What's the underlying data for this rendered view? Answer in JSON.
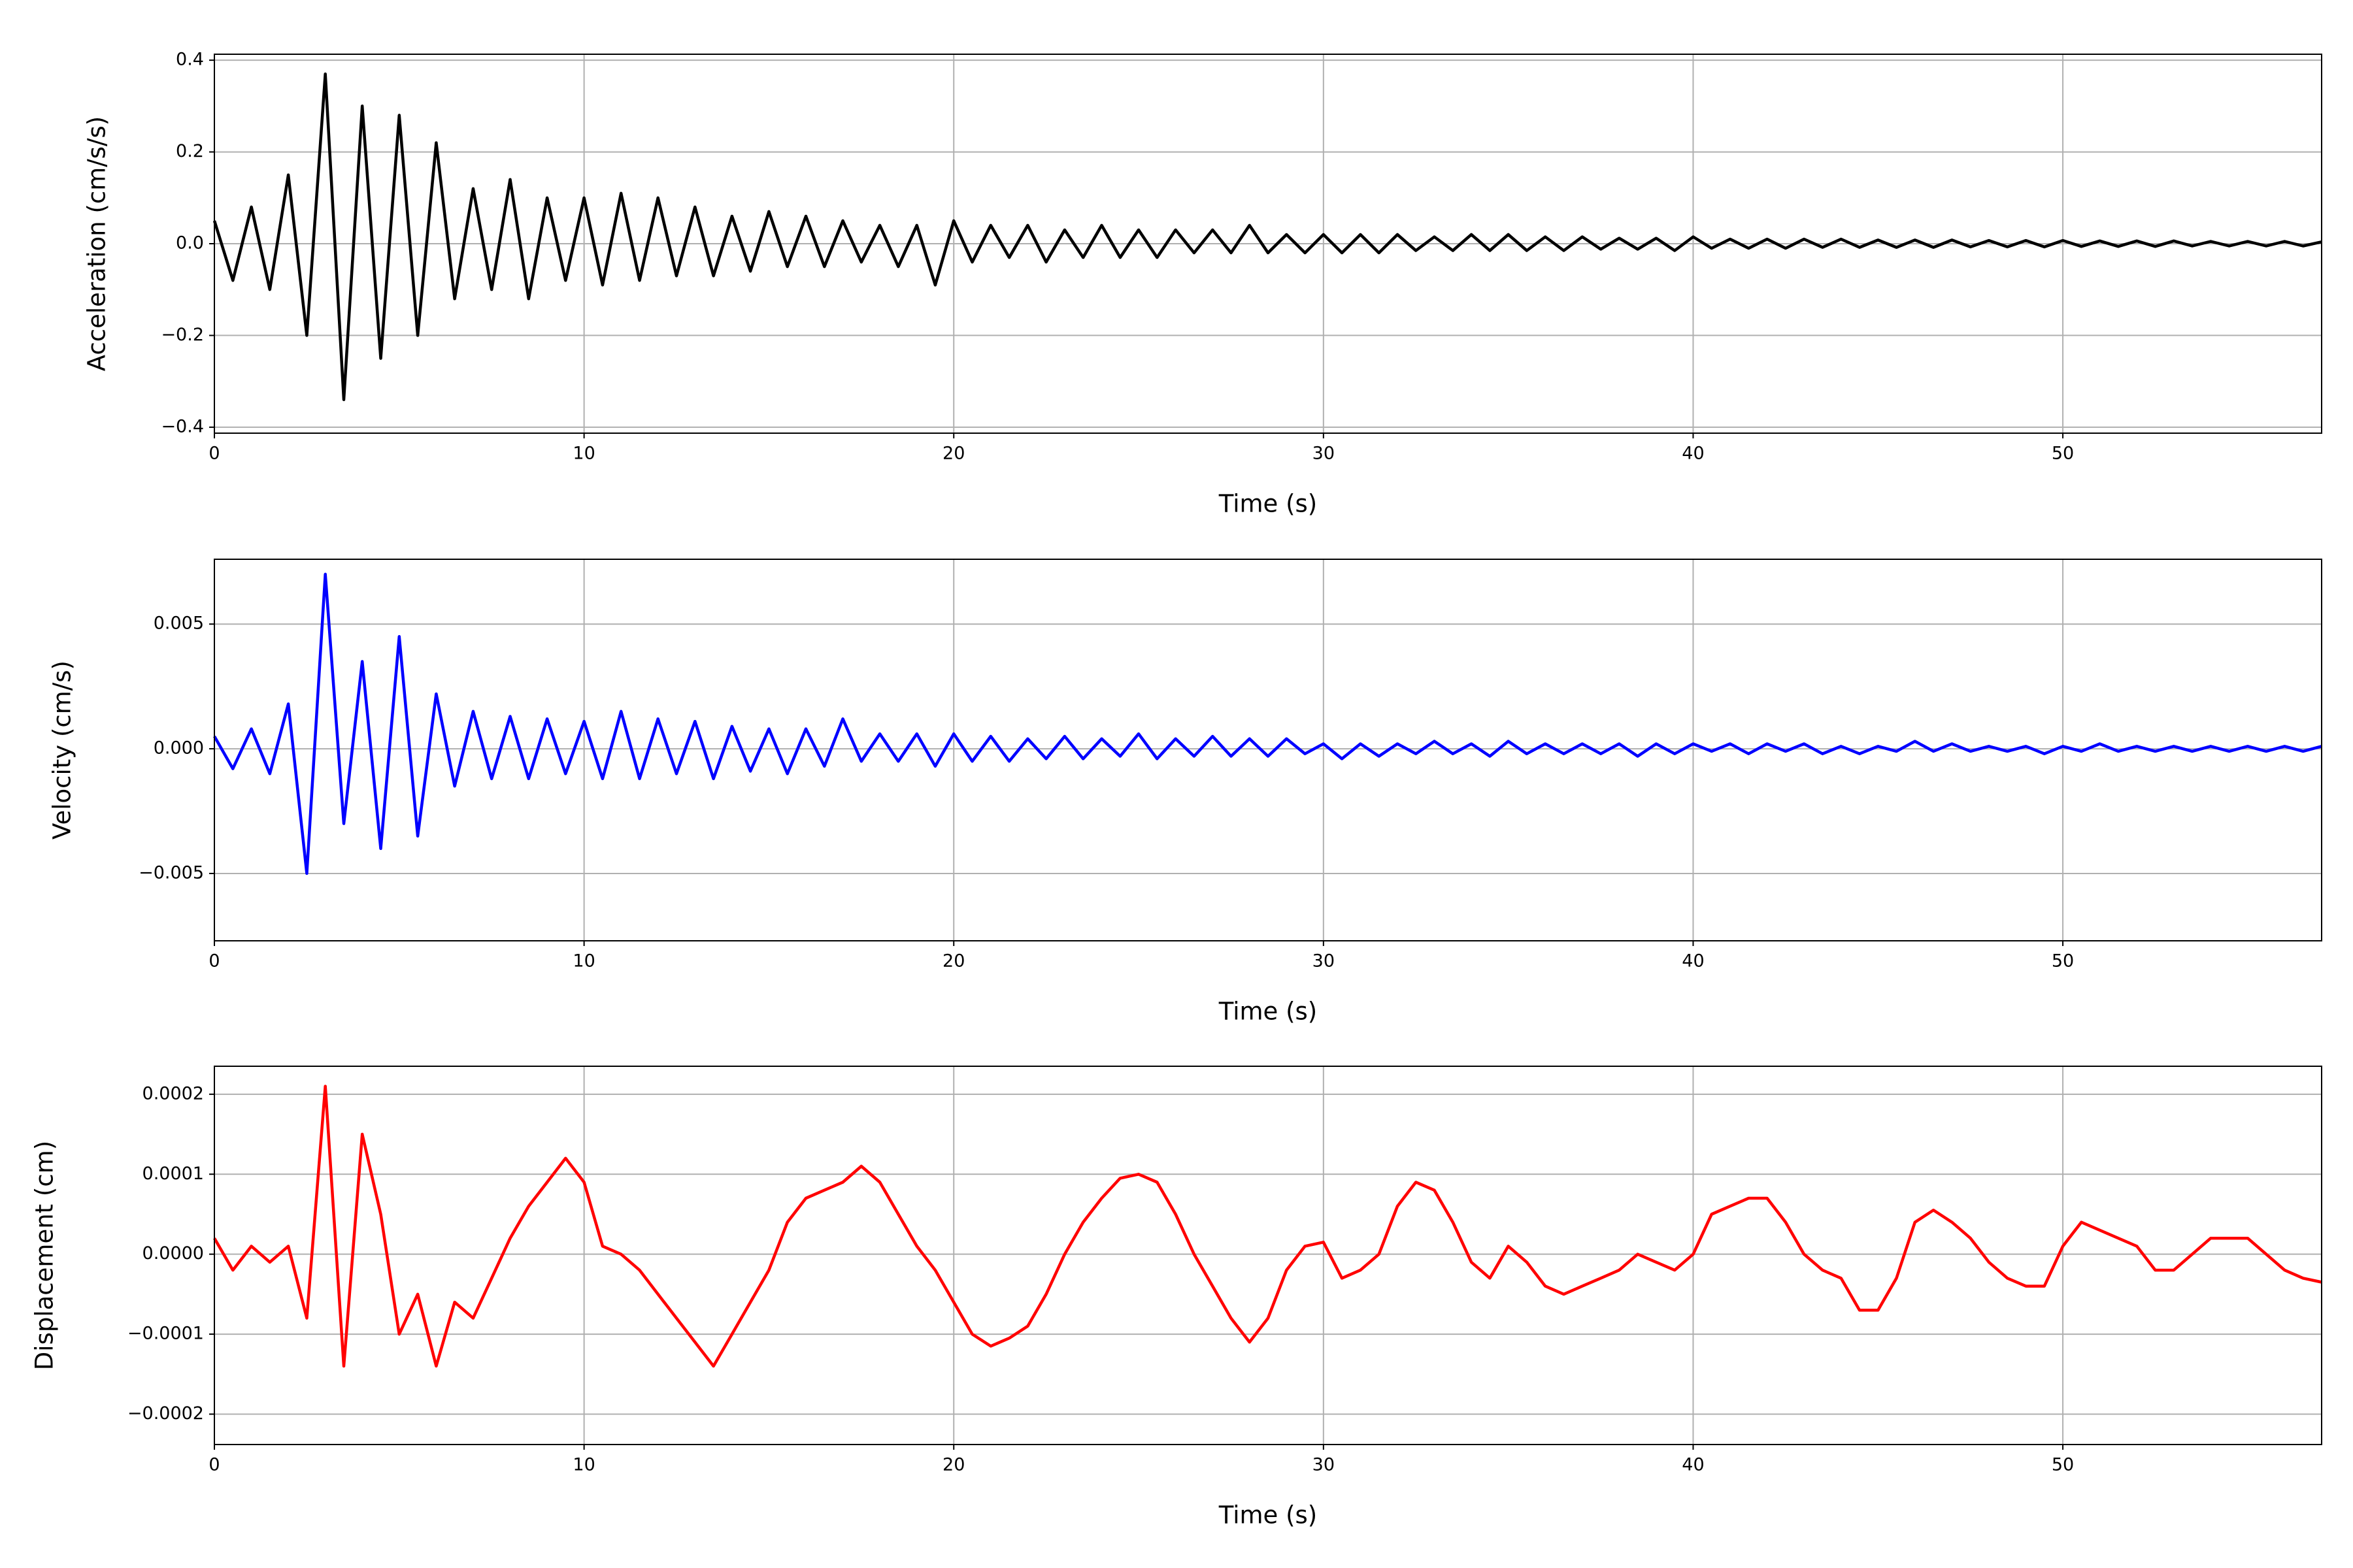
{
  "chart_data": [
    {
      "type": "line",
      "ylabel": "Acceleration (cm/s/s)",
      "xlabel": "Time (s)",
      "color": "#000000",
      "grid": true,
      "xlim": [
        0,
        57
      ],
      "xticks": [
        0,
        10,
        20,
        30,
        40,
        50
      ],
      "ylim": [
        -0.413,
        0.413
      ],
      "yticks": [
        {
          "value": -0.4,
          "label": "−0.4"
        },
        {
          "value": -0.2,
          "label": "−0.2"
        },
        {
          "value": 0,
          "label": "0.0"
        },
        {
          "value": 0.2,
          "label": "0.2"
        },
        {
          "value": 0.4,
          "label": "0.4"
        }
      ],
      "x": [
        0,
        0.5,
        1,
        1.5,
        2,
        2.5,
        3,
        3.5,
        4,
        4.5,
        5,
        5.5,
        6,
        6.5,
        7,
        7.5,
        8,
        8.5,
        9,
        9.5,
        10,
        10.5,
        11,
        11.5,
        12,
        12.5,
        13,
        13.5,
        14,
        14.5,
        15,
        15.5,
        16,
        16.5,
        17,
        17.5,
        18,
        18.5,
        19,
        19.5,
        20,
        20.5,
        21,
        21.5,
        22,
        22.5,
        23,
        23.5,
        24,
        24.5,
        25,
        25.5,
        26,
        26.5,
        27,
        27.5,
        28,
        28.5,
        29,
        29.5,
        30,
        30.5,
        31,
        31.5,
        32,
        32.5,
        33,
        33.5,
        34,
        34.5,
        35,
        35.5,
        36,
        36.5,
        37,
        37.5,
        38,
        38.5,
        39,
        39.5,
        40,
        40.5,
        41,
        41.5,
        42,
        42.5,
        43,
        43.5,
        44,
        44.5,
        45,
        45.5,
        46,
        46.5,
        47,
        47.5,
        48,
        48.5,
        49,
        49.5,
        50,
        50.5,
        51,
        51.5,
        52,
        52.5,
        53,
        53.5,
        54,
        54.5,
        55,
        55.5,
        56,
        56.5,
        57
      ],
      "values": [
        0.05,
        -0.08,
        0.08,
        -0.1,
        0.15,
        -0.2,
        0.37,
        -0.34,
        0.3,
        -0.25,
        0.28,
        -0.2,
        0.22,
        -0.12,
        0.12,
        -0.1,
        0.14,
        -0.12,
        0.1,
        -0.08,
        0.1,
        -0.09,
        0.11,
        -0.08,
        0.1,
        -0.07,
        0.08,
        -0.07,
        0.06,
        -0.06,
        0.07,
        -0.05,
        0.06,
        -0.05,
        0.05,
        -0.04,
        0.04,
        -0.05,
        0.04,
        -0.09,
        0.05,
        -0.04,
        0.04,
        -0.03,
        0.04,
        -0.04,
        0.03,
        -0.03,
        0.04,
        -0.03,
        0.03,
        -0.03,
        0.03,
        -0.02,
        0.03,
        -0.02,
        0.04,
        -0.02,
        0.02,
        -0.02,
        0.02,
        -0.02,
        0.02,
        -0.02,
        0.02,
        -0.015,
        0.015,
        -0.015,
        0.02,
        -0.015,
        0.02,
        -0.015,
        0.015,
        -0.015,
        0.015,
        -0.012,
        0.012,
        -0.012,
        0.012,
        -0.015,
        0.015,
        -0.01,
        0.01,
        -0.01,
        0.01,
        -0.01,
        0.01,
        -0.008,
        0.01,
        -0.008,
        0.008,
        -0.008,
        0.008,
        -0.008,
        0.008,
        -0.007,
        0.007,
        -0.007,
        0.007,
        -0.007,
        0.007,
        -0.006,
        0.006,
        -0.006,
        0.006,
        -0.006,
        0.006,
        -0.005,
        0.005,
        -0.005,
        0.005,
        -0.005,
        0.005,
        -0.005,
        0.004
      ]
    },
    {
      "type": "line",
      "ylabel": "Velocity (cm/s)",
      "xlabel": "Time (s)",
      "color": "#0000ff",
      "grid": true,
      "xlim": [
        0,
        57
      ],
      "xticks": [
        0,
        10,
        20,
        30,
        40,
        50
      ],
      "ylim": [
        -0.0077,
        0.0076
      ],
      "yticks": [
        {
          "value": -0.005,
          "label": "−0.005"
        },
        {
          "value": 0,
          "label": "0.000"
        },
        {
          "value": 0.005,
          "label": "0.005"
        }
      ],
      "x": [
        0,
        0.5,
        1,
        1.5,
        2,
        2.5,
        3,
        3.5,
        4,
        4.5,
        5,
        5.5,
        6,
        6.5,
        7,
        7.5,
        8,
        8.5,
        9,
        9.5,
        10,
        10.5,
        11,
        11.5,
        12,
        12.5,
        13,
        13.5,
        14,
        14.5,
        15,
        15.5,
        16,
        16.5,
        17,
        17.5,
        18,
        18.5,
        19,
        19.5,
        20,
        20.5,
        21,
        21.5,
        22,
        22.5,
        23,
        23.5,
        24,
        24.5,
        25,
        25.5,
        26,
        26.5,
        27,
        27.5,
        28,
        28.5,
        29,
        29.5,
        30,
        30.5,
        31,
        31.5,
        32,
        32.5,
        33,
        33.5,
        34,
        34.5,
        35,
        35.5,
        36,
        36.5,
        37,
        37.5,
        38,
        38.5,
        39,
        39.5,
        40,
        40.5,
        41,
        41.5,
        42,
        42.5,
        43,
        43.5,
        44,
        44.5,
        45,
        45.5,
        46,
        46.5,
        47,
        47.5,
        48,
        48.5,
        49,
        49.5,
        50,
        50.5,
        51,
        51.5,
        52,
        52.5,
        53,
        53.5,
        54,
        54.5,
        55,
        55.5,
        56,
        56.5,
        57
      ],
      "values": [
        0.0005,
        -0.0008,
        0.0008,
        -0.001,
        0.0018,
        -0.005,
        0.007,
        -0.003,
        0.0035,
        -0.004,
        0.0045,
        -0.0035,
        0.0022,
        -0.0015,
        0.0015,
        -0.0012,
        0.0013,
        -0.0012,
        0.0012,
        -0.001,
        0.0011,
        -0.0012,
        0.0015,
        -0.0012,
        0.0012,
        -0.001,
        0.0011,
        -0.0012,
        0.0009,
        -0.0009,
        0.0008,
        -0.001,
        0.0008,
        -0.0007,
        0.0012,
        -0.0005,
        0.0006,
        -0.0005,
        0.0006,
        -0.0007,
        0.0006,
        -0.0005,
        0.0005,
        -0.0005,
        0.0004,
        -0.0004,
        0.0005,
        -0.0004,
        0.0004,
        -0.0003,
        0.0006,
        -0.0004,
        0.0004,
        -0.0003,
        0.0005,
        -0.0003,
        0.0004,
        -0.0003,
        0.0004,
        -0.0002,
        0.0002,
        -0.0004,
        0.0002,
        -0.0003,
        0.0002,
        -0.0002,
        0.0003,
        -0.0002,
        0.0002,
        -0.0003,
        0.0003,
        -0.0002,
        0.0002,
        -0.0002,
        0.0002,
        -0.0002,
        0.0002,
        -0.0003,
        0.0002,
        -0.0002,
        0.0002,
        -0.0001,
        0.0002,
        -0.0002,
        0.0002,
        -0.0001,
        0.0002,
        -0.0002,
        0.0001,
        -0.0002,
        0.0001,
        -0.0001,
        0.0003,
        -0.0001,
        0.0002,
        -0.0001,
        0.0001,
        -0.0001,
        0.0001,
        -0.0002,
        0.0001,
        -0.0001,
        0.0002,
        -0.0001,
        0.0001,
        -0.0001,
        0.0001,
        -0.0001,
        0.0001,
        -0.0001,
        0.0001,
        -0.0001,
        0.0001,
        -0.0001,
        0.0001
      ]
    },
    {
      "type": "line",
      "ylabel": "Displacement (cm)",
      "xlabel": "Time (s)",
      "color": "#ff0000",
      "grid": true,
      "xlim": [
        0,
        57
      ],
      "xticks": [
        0,
        10,
        20,
        30,
        40,
        50
      ],
      "ylim": [
        -0.000238,
        0.000235
      ],
      "yticks": [
        {
          "value": -0.0002,
          "label": "−0.0002"
        },
        {
          "value": -0.0001,
          "label": "−0.0001"
        },
        {
          "value": 0,
          "label": "0.0000"
        },
        {
          "value": 0.0001,
          "label": "0.0001"
        },
        {
          "value": 0.0002,
          "label": "0.0002"
        }
      ],
      "x": [
        0,
        0.5,
        1,
        1.5,
        2,
        2.5,
        3,
        3.5,
        4,
        4.5,
        5,
        5.5,
        6,
        6.5,
        7,
        7.5,
        8,
        8.5,
        9,
        9.5,
        10,
        10.5,
        11,
        11.5,
        12,
        12.5,
        13,
        13.5,
        14,
        14.5,
        15,
        15.5,
        16,
        16.5,
        17,
        17.5,
        18,
        18.5,
        19,
        19.5,
        20,
        20.5,
        21,
        21.5,
        22,
        22.5,
        23,
        23.5,
        24,
        24.5,
        25,
        25.5,
        26,
        26.5,
        27,
        27.5,
        28,
        28.5,
        29,
        29.5,
        30,
        30.5,
        31,
        31.5,
        32,
        32.5,
        33,
        33.5,
        34,
        34.5,
        35,
        35.5,
        36,
        36.5,
        37,
        37.5,
        38,
        38.5,
        39,
        39.5,
        40,
        40.5,
        41,
        41.5,
        42,
        42.5,
        43,
        43.5,
        44,
        44.5,
        45,
        45.5,
        46,
        46.5,
        47,
        47.5,
        48,
        48.5,
        49,
        49.5,
        50,
        50.5,
        51,
        51.5,
        52,
        52.5,
        53,
        53.5,
        54,
        54.5,
        55,
        55.5,
        56,
        56.5,
        57
      ],
      "values": [
        2e-05,
        -2e-05,
        1e-05,
        -1e-05,
        1e-05,
        -8e-05,
        0.00021,
        -0.00014,
        0.00015,
        5e-05,
        -0.0001,
        -5e-05,
        -0.00014,
        -6e-05,
        -8e-05,
        -3e-05,
        2e-05,
        6e-05,
        9e-05,
        0.00012,
        9e-05,
        1e-05,
        0,
        -2e-05,
        -5e-05,
        -8e-05,
        -0.00011,
        -0.00014,
        -0.0001,
        -6e-05,
        -2e-05,
        4e-05,
        7e-05,
        8e-05,
        9e-05,
        0.00011,
        9e-05,
        5e-05,
        1e-05,
        -2e-05,
        -6e-05,
        -0.0001,
        -0.000115,
        -0.000105,
        -9e-05,
        -5e-05,
        0,
        4e-05,
        7e-05,
        9.5e-05,
        0.0001,
        9e-05,
        5e-05,
        0,
        -4e-05,
        -8e-05,
        -0.00011,
        -8e-05,
        -2e-05,
        1e-05,
        1.5e-05,
        -3e-05,
        -2e-05,
        0,
        6e-05,
        9e-05,
        8e-05,
        4e-05,
        -1e-05,
        -3e-05,
        1e-05,
        -1e-05,
        -4e-05,
        -5e-05,
        -4e-05,
        -3e-05,
        -2e-05,
        0,
        -1e-05,
        -2e-05,
        0,
        5e-05,
        6e-05,
        7e-05,
        7e-05,
        4e-05,
        0,
        -2e-05,
        -3e-05,
        -7e-05,
        -7e-05,
        -3e-05,
        4e-05,
        5.5e-05,
        4e-05,
        2e-05,
        -1e-05,
        -3e-05,
        -4e-05,
        -4e-05,
        1e-05,
        4e-05,
        3e-05,
        2e-05,
        1e-05,
        -2e-05,
        -2e-05,
        0,
        2e-05,
        2e-05,
        2e-05,
        0,
        -2e-05,
        -3e-05,
        -3.5e-05
      ]
    }
  ]
}
